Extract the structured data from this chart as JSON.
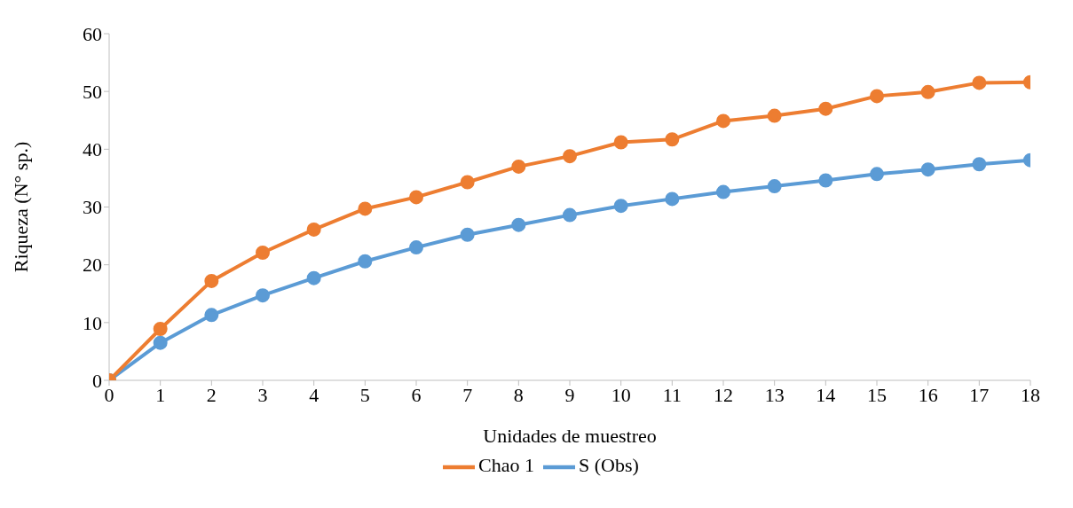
{
  "chart_data": {
    "type": "line",
    "xlabel": "Unidades de muestreo",
    "ylabel": "Riqueza (N° sp.)",
    "x": [
      0,
      1,
      2,
      3,
      4,
      5,
      6,
      7,
      8,
      9,
      10,
      11,
      12,
      13,
      14,
      15,
      16,
      17,
      18
    ],
    "series": [
      {
        "name": "S (Obs)",
        "color": "#5b9bd5",
        "values": [
          0,
          6.5,
          11.3,
          14.7,
          17.7,
          20.6,
          23.0,
          25.2,
          26.9,
          28.6,
          30.2,
          31.4,
          32.6,
          33.6,
          34.6,
          35.7,
          36.5,
          37.4,
          38.1
        ]
      },
      {
        "name": "Chao 1",
        "color": "#ed7d31",
        "values": [
          0,
          8.9,
          17.2,
          22.1,
          26.1,
          29.7,
          31.7,
          34.3,
          37.0,
          38.8,
          41.2,
          41.7,
          44.9,
          45.8,
          47.0,
          49.2,
          49.9,
          51.5,
          51.6
        ]
      }
    ],
    "xlim": [
      0,
      18
    ],
    "xticks": [
      0,
      1,
      2,
      3,
      4,
      5,
      6,
      7,
      8,
      9,
      10,
      11,
      12,
      13,
      14,
      15,
      16,
      17,
      18
    ],
    "ylim": [
      0,
      60
    ],
    "yticks": [
      0,
      10,
      20,
      30,
      40,
      50,
      60
    ],
    "grid": false,
    "legend": "bottom",
    "marker": "circle",
    "line_style": "solid"
  }
}
